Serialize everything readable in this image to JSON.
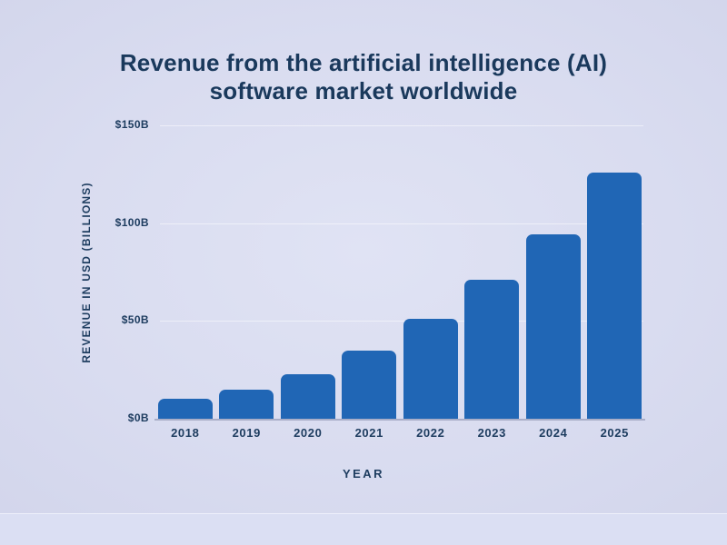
{
  "title_lines": [
    "Revenue from the artificial intelligence (AI)",
    "software market worldwide"
  ],
  "chart_data": {
    "type": "bar",
    "title": "Revenue from the artificial intelligence (AI) software market worldwide",
    "xlabel": "YEAR",
    "ylabel": "REVENUE IN USD (BILLIONS)",
    "categories": [
      "2018",
      "2019",
      "2020",
      "2021",
      "2022",
      "2023",
      "2024",
      "2025"
    ],
    "values": [
      10.1,
      14.7,
      22.6,
      34.9,
      51.3,
      70.9,
      94.4,
      126.0
    ],
    "ylim": [
      0,
      150
    ],
    "yticks": [
      {
        "value": 0,
        "label": "$0B"
      },
      {
        "value": 50,
        "label": "$50B"
      },
      {
        "value": 100,
        "label": "$100B"
      },
      {
        "value": 150,
        "label": "$150B"
      }
    ],
    "grid": true,
    "legend": "none",
    "bar_color": "#2066b5",
    "text_color": "#1d3c5f",
    "background_color": "#d9dcf0"
  }
}
